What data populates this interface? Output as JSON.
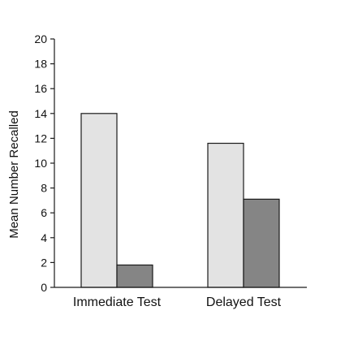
{
  "chart_data": {
    "type": "bar",
    "title": "",
    "xlabel": "",
    "ylabel": "Mean Number Recalled",
    "ylim": [
      0,
      20
    ],
    "yticks": [
      0,
      2,
      4,
      6,
      8,
      10,
      12,
      14,
      16,
      18,
      20
    ],
    "categories": [
      "Immediate Test",
      "Delayed Test"
    ],
    "series": [
      {
        "values": [
          14.0,
          11.6
        ],
        "color": "#e3e3e3"
      },
      {
        "values": [
          1.8,
          7.1
        ],
        "color": "#858585"
      }
    ],
    "grid": false,
    "legend": "none",
    "bar_edge_color": "#1a1a1a"
  }
}
